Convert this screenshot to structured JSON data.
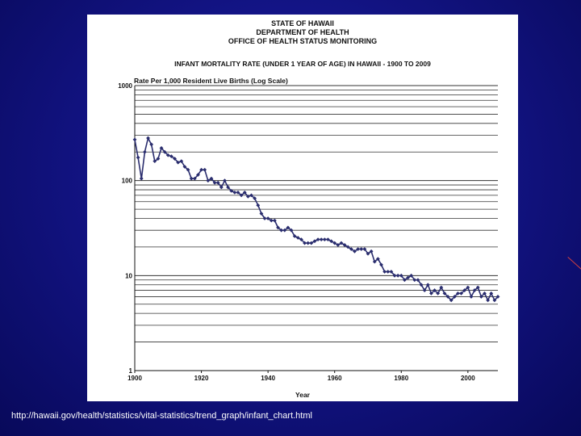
{
  "header": {
    "line1": "STATE OF HAWAII",
    "line2": "DEPARTMENT OF HEALTH",
    "line3": "OFFICE OF HEALTH STATUS MONITORING"
  },
  "caption": "http://hawaii.gov/health/statistics/vital-statistics/trend_graph/infant_chart.html",
  "chart_data": {
    "type": "line",
    "title": "INFANT MORTALITY RATE (UNDER 1 YEAR OF AGE) IN HAWAII - 1900 TO 2009",
    "ylabel": "Rate Per 1,000 Resident Live Births (Log Scale)",
    "xlabel": "Year",
    "yscale": "log",
    "ylim": [
      1,
      1000
    ],
    "xlim": [
      1900,
      2009
    ],
    "grid": true,
    "series_color": "#2a2d6e",
    "x_ticks": [
      1900,
      1920,
      1940,
      1960,
      1980,
      2000
    ],
    "y_ticks": [
      1,
      10,
      100,
      1000
    ],
    "series": [
      {
        "x": [
          1900,
          1901,
          1902,
          1903,
          1904,
          1905,
          1906,
          1907,
          1908,
          1909,
          1910,
          1911,
          1912,
          1913,
          1914,
          1915,
          1916,
          1917,
          1918,
          1919,
          1920,
          1921,
          1922,
          1923,
          1924,
          1925,
          1926,
          1927,
          1928,
          1929,
          1930,
          1931,
          1932,
          1933,
          1934,
          1935,
          1936,
          1937,
          1938,
          1939,
          1940,
          1941,
          1942,
          1943,
          1944,
          1945,
          1946,
          1947,
          1948,
          1949,
          1950,
          1951,
          1952,
          1953,
          1954,
          1955,
          1956,
          1957,
          1958,
          1959,
          1960,
          1961,
          1962,
          1963,
          1964,
          1965,
          1966,
          1967,
          1968,
          1969,
          1970,
          1971,
          1972,
          1973,
          1974,
          1975,
          1976,
          1977,
          1978,
          1979,
          1980,
          1981,
          1982,
          1983,
          1984,
          1985,
          1986,
          1987,
          1988,
          1989,
          1990,
          1991,
          1992,
          1993,
          1994,
          1995,
          1996,
          1997,
          1998,
          1999,
          2000,
          2001,
          2002,
          2003,
          2004,
          2005,
          2006,
          2007,
          2008,
          2009
        ],
        "y": [
          270,
          175,
          105,
          200,
          280,
          240,
          160,
          170,
          220,
          200,
          185,
          180,
          170,
          155,
          160,
          140,
          130,
          105,
          105,
          115,
          130,
          130,
          100,
          105,
          95,
          95,
          85,
          100,
          85,
          78,
          75,
          75,
          70,
          75,
          68,
          70,
          65,
          55,
          45,
          40,
          40,
          38,
          38,
          32,
          30,
          30,
          32,
          30,
          26,
          25,
          24,
          22,
          22,
          22,
          23,
          24,
          24,
          24,
          24,
          23,
          22,
          21,
          22,
          21,
          20,
          19,
          18,
          19,
          19,
          19,
          17,
          18,
          14,
          15,
          13,
          11,
          11,
          11,
          10,
          10,
          10,
          9,
          9.5,
          10,
          9,
          9,
          8,
          7,
          8,
          6.5,
          7,
          6.5,
          7.5,
          6.5,
          6,
          5.5,
          6,
          6.5,
          6.5,
          7,
          7.5,
          6,
          7,
          7.5,
          6,
          6.5,
          5.5,
          6.5,
          5.5,
          6
        ]
      }
    ]
  }
}
